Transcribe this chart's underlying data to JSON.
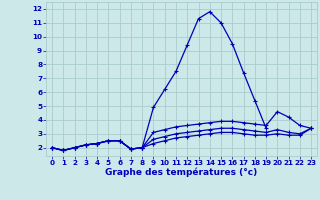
{
  "title": "Graphe des températures (°c)",
  "background_color": "#cce8e8",
  "grid_color": "#aacccc",
  "line_color": "#0000bb",
  "x_hours": [
    0,
    1,
    2,
    3,
    4,
    5,
    6,
    7,
    8,
    9,
    10,
    11,
    12,
    13,
    14,
    15,
    16,
    17,
    18,
    19,
    20,
    21,
    22,
    23
  ],
  "line1": [
    2.0,
    1.8,
    2.0,
    2.2,
    2.3,
    2.5,
    2.5,
    1.9,
    2.0,
    4.9,
    6.2,
    7.5,
    9.4,
    11.3,
    11.8,
    11.0,
    9.5,
    7.4,
    5.4,
    3.4,
    null,
    null,
    null,
    null
  ],
  "line2": [
    2.0,
    1.8,
    2.0,
    2.2,
    2.3,
    2.5,
    2.5,
    1.9,
    2.0,
    3.1,
    3.3,
    3.5,
    3.6,
    3.7,
    3.8,
    3.9,
    3.9,
    3.8,
    3.7,
    3.6,
    4.6,
    4.2,
    3.6,
    3.4
  ],
  "line3": [
    2.0,
    1.8,
    2.0,
    2.2,
    2.3,
    2.5,
    2.5,
    1.9,
    2.0,
    2.6,
    2.8,
    3.0,
    3.1,
    3.2,
    3.3,
    3.4,
    3.4,
    3.3,
    3.2,
    3.1,
    3.3,
    3.1,
    3.0,
    3.4
  ],
  "line4": [
    2.0,
    1.8,
    2.0,
    2.2,
    2.3,
    2.5,
    2.5,
    1.9,
    2.0,
    2.3,
    2.5,
    2.7,
    2.8,
    2.9,
    3.0,
    3.1,
    3.1,
    3.0,
    2.9,
    2.9,
    3.0,
    2.9,
    2.9,
    3.4
  ],
  "ylim": [
    1.4,
    12.5
  ],
  "yticks": [
    2,
    3,
    4,
    5,
    6,
    7,
    8,
    9,
    10,
    11,
    12
  ],
  "xlabel_fontsize": 6.5,
  "tick_fontsize": 5.2
}
